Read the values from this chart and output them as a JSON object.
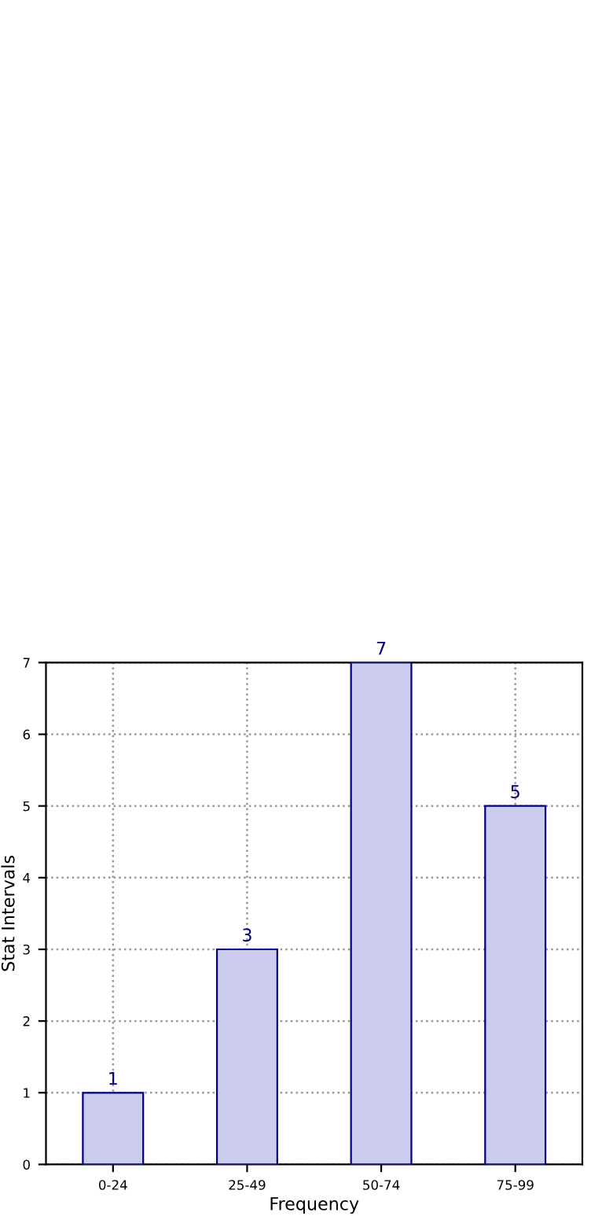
{
  "chart_data": {
    "type": "bar",
    "xlabel": "Frequency",
    "ylabel": "Stat Intervals",
    "categories": [
      "0-24",
      "25-49",
      "50-74",
      "75-99"
    ],
    "values": [
      1,
      3,
      7,
      5
    ],
    "color": "#ccccee",
    "ylim": [
      0,
      7
    ],
    "yticks": [
      0,
      1,
      2,
      3,
      4,
      5,
      6,
      7
    ],
    "grid": true,
    "data_labels": true
  }
}
